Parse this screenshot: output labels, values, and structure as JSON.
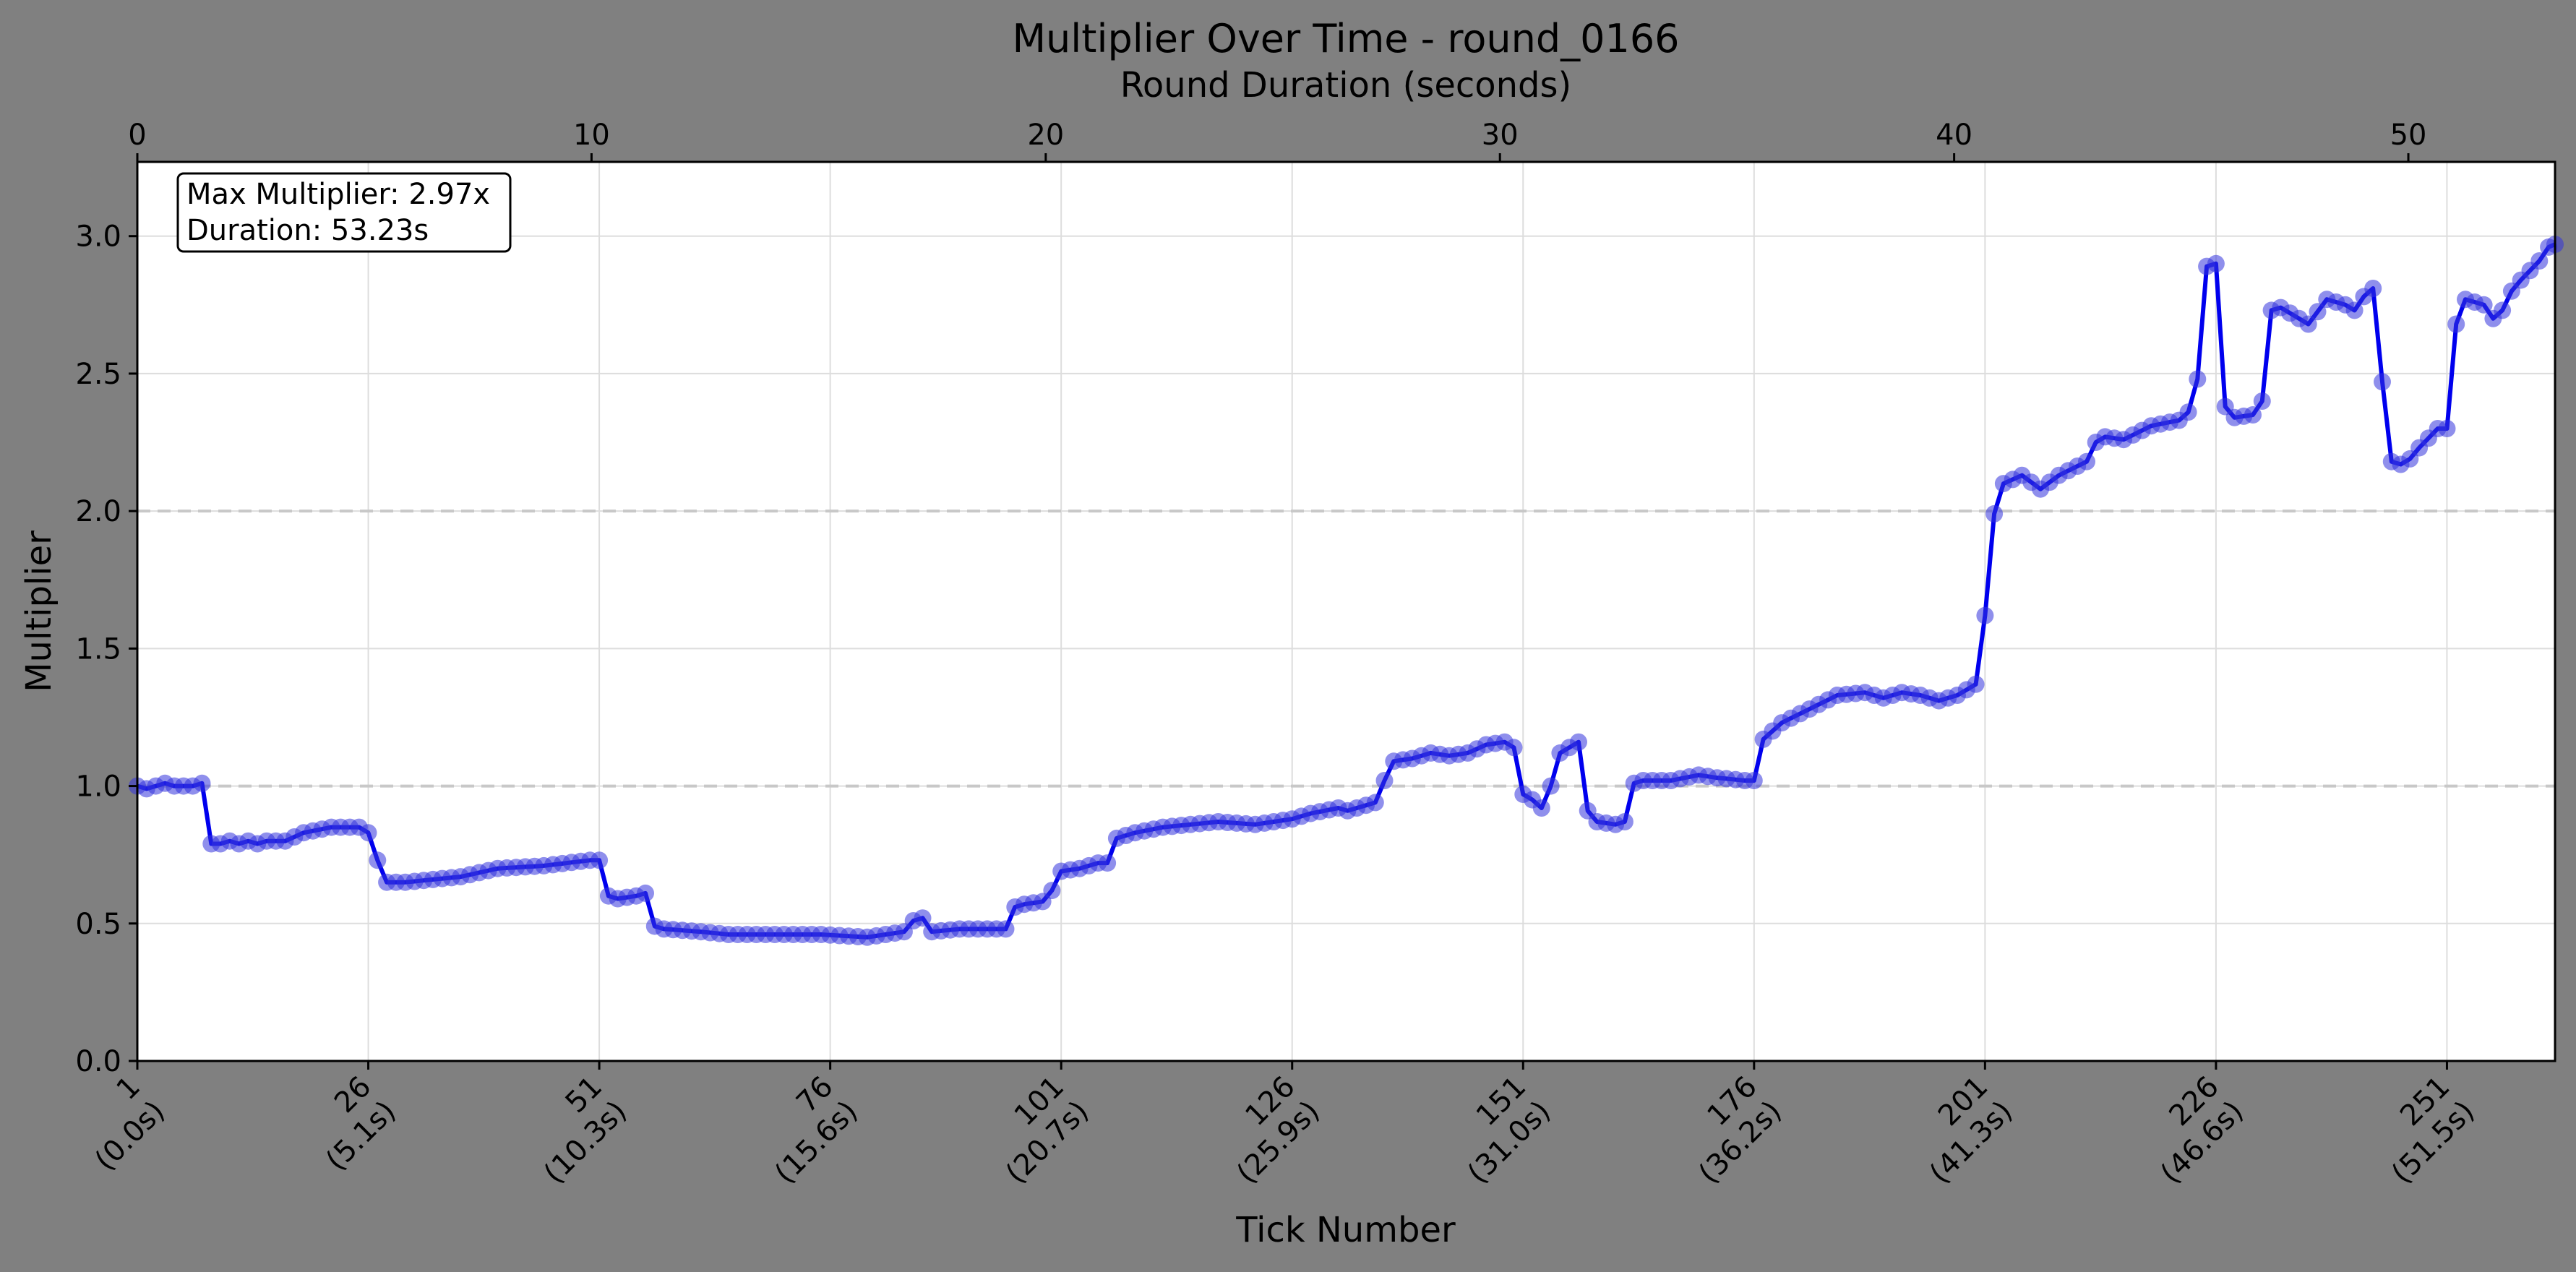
{
  "chart_data": {
    "type": "line",
    "title": "Multiplier Over Time - round_0166",
    "xlabel": "Tick Number",
    "ylabel": "Multiplier",
    "top_xlabel": "Round Duration (seconds)",
    "xlim": [
      1,
      262.7
    ],
    "ylim": [
      0,
      3.27
    ],
    "grid": true,
    "reference_lines": [
      1.0,
      2.0
    ],
    "y_ticks": [
      "0.0",
      "0.5",
      "1.0",
      "1.5",
      "2.0",
      "2.5",
      "3.0"
    ],
    "x_ticks": [
      {
        "tick": 1,
        "line1": "1",
        "line2": "(0.0s)"
      },
      {
        "tick": 26,
        "line1": "26",
        "line2": "(5.1s)"
      },
      {
        "tick": 51,
        "line1": "51",
        "line2": "(10.3s)"
      },
      {
        "tick": 76,
        "line1": "76",
        "line2": "(15.6s)"
      },
      {
        "tick": 101,
        "line1": "101",
        "line2": "(20.7s)"
      },
      {
        "tick": 126,
        "line1": "126",
        "line2": "(25.9s)"
      },
      {
        "tick": 151,
        "line1": "151",
        "line2": "(31.0s)"
      },
      {
        "tick": 176,
        "line1": "176",
        "line2": "(36.2s)"
      },
      {
        "tick": 201,
        "line1": "201",
        "line2": "(41.3s)"
      },
      {
        "tick": 226,
        "line1": "226",
        "line2": "(46.6s)"
      },
      {
        "tick": 251,
        "line1": "251",
        "line2": "(51.5s)"
      }
    ],
    "top_ticks": [
      "0",
      "10",
      "20",
      "30",
      "40",
      "50"
    ],
    "top_xlim": [
      0,
      53.23
    ],
    "info_box": {
      "line1": "Max Multiplier: 2.97x",
      "line2": "Duration: 53.23s"
    },
    "colors": {
      "line": "#0000ee",
      "marker": "#3333dd",
      "background": "#808080",
      "plot_bg": "#ffffff"
    },
    "keypoints": [
      [
        1,
        1.0
      ],
      [
        2,
        0.99
      ],
      [
        3,
        1.0
      ],
      [
        4,
        1.01
      ],
      [
        5,
        1.0
      ],
      [
        6,
        1.0
      ],
      [
        7,
        1.0
      ],
      [
        8,
        1.01
      ],
      [
        9,
        0.79
      ],
      [
        10,
        0.79
      ],
      [
        11,
        0.8
      ],
      [
        12,
        0.79
      ],
      [
        13,
        0.8
      ],
      [
        14,
        0.79
      ],
      [
        15,
        0.8
      ],
      [
        17,
        0.8
      ],
      [
        19,
        0.83
      ],
      [
        22,
        0.85
      ],
      [
        25,
        0.85
      ],
      [
        26,
        0.83
      ],
      [
        27,
        0.73
      ],
      [
        28,
        0.65
      ],
      [
        30,
        0.65
      ],
      [
        33,
        0.66
      ],
      [
        36,
        0.67
      ],
      [
        40,
        0.7
      ],
      [
        45,
        0.71
      ],
      [
        50,
        0.73
      ],
      [
        51,
        0.73
      ],
      [
        52,
        0.6
      ],
      [
        53,
        0.59
      ],
      [
        55,
        0.6
      ],
      [
        56,
        0.61
      ],
      [
        57,
        0.49
      ],
      [
        58,
        0.48
      ],
      [
        62,
        0.47
      ],
      [
        65,
        0.46
      ],
      [
        70,
        0.46
      ],
      [
        75,
        0.46
      ],
      [
        80,
        0.45
      ],
      [
        84,
        0.47
      ],
      [
        85,
        0.51
      ],
      [
        86,
        0.52
      ],
      [
        87,
        0.47
      ],
      [
        90,
        0.48
      ],
      [
        94,
        0.48
      ],
      [
        95,
        0.48
      ],
      [
        96,
        0.56
      ],
      [
        97,
        0.57
      ],
      [
        99,
        0.58
      ],
      [
        100,
        0.62
      ],
      [
        101,
        0.69
      ],
      [
        103,
        0.7
      ],
      [
        105,
        0.72
      ],
      [
        106,
        0.72
      ],
      [
        107,
        0.81
      ],
      [
        109,
        0.83
      ],
      [
        112,
        0.85
      ],
      [
        115,
        0.86
      ],
      [
        118,
        0.87
      ],
      [
        122,
        0.86
      ],
      [
        126,
        0.88
      ],
      [
        128,
        0.9
      ],
      [
        131,
        0.92
      ],
      [
        132,
        0.91
      ],
      [
        133,
        0.92
      ],
      [
        135,
        0.94
      ],
      [
        136,
        1.02
      ],
      [
        137,
        1.09
      ],
      [
        139,
        1.1
      ],
      [
        141,
        1.12
      ],
      [
        143,
        1.11
      ],
      [
        145,
        1.12
      ],
      [
        147,
        1.15
      ],
      [
        149,
        1.16
      ],
      [
        150,
        1.14
      ],
      [
        151,
        0.97
      ],
      [
        152,
        0.95
      ],
      [
        153,
        0.92
      ],
      [
        154,
        1.0
      ],
      [
        155,
        1.12
      ],
      [
        156,
        1.14
      ],
      [
        157,
        1.16
      ],
      [
        158,
        0.91
      ],
      [
        159,
        0.87
      ],
      [
        161,
        0.86
      ],
      [
        162,
        0.87
      ],
      [
        163,
        1.01
      ],
      [
        164,
        1.02
      ],
      [
        167,
        1.02
      ],
      [
        170,
        1.04
      ],
      [
        172,
        1.03
      ],
      [
        175,
        1.02
      ],
      [
        176,
        1.02
      ],
      [
        177,
        1.17
      ],
      [
        179,
        1.23
      ],
      [
        182,
        1.28
      ],
      [
        185,
        1.33
      ],
      [
        188,
        1.34
      ],
      [
        190,
        1.32
      ],
      [
        192,
        1.34
      ],
      [
        194,
        1.33
      ],
      [
        196,
        1.31
      ],
      [
        198,
        1.33
      ],
      [
        200,
        1.37
      ],
      [
        201,
        1.62
      ],
      [
        202,
        1.99
      ],
      [
        203,
        2.1
      ],
      [
        205,
        2.13
      ],
      [
        207,
        2.08
      ],
      [
        209,
        2.13
      ],
      [
        212,
        2.18
      ],
      [
        213,
        2.25
      ],
      [
        214,
        2.27
      ],
      [
        216,
        2.26
      ],
      [
        219,
        2.31
      ],
      [
        222,
        2.33
      ],
      [
        223,
        2.36
      ],
      [
        224,
        2.48
      ],
      [
        225,
        2.89
      ],
      [
        226,
        2.9
      ],
      [
        227,
        2.38
      ],
      [
        228,
        2.34
      ],
      [
        230,
        2.35
      ],
      [
        231,
        2.4
      ],
      [
        232,
        2.73
      ],
      [
        233,
        2.74
      ],
      [
        235,
        2.7
      ],
      [
        236,
        2.68
      ],
      [
        238,
        2.77
      ],
      [
        240,
        2.75
      ],
      [
        241,
        2.73
      ],
      [
        242,
        2.78
      ],
      [
        243,
        2.81
      ],
      [
        244,
        2.47
      ],
      [
        245,
        2.18
      ],
      [
        246,
        2.17
      ],
      [
        247,
        2.19
      ],
      [
        248,
        2.23
      ],
      [
        250,
        2.3
      ],
      [
        251,
        2.3
      ],
      [
        252,
        2.68
      ],
      [
        253,
        2.77
      ],
      [
        255,
        2.75
      ],
      [
        256,
        2.7
      ],
      [
        257,
        2.73
      ],
      [
        258,
        2.8
      ],
      [
        259,
        2.84
      ],
      [
        261,
        2.91
      ],
      [
        262,
        2.96
      ],
      [
        262.7,
        2.97
      ]
    ]
  }
}
